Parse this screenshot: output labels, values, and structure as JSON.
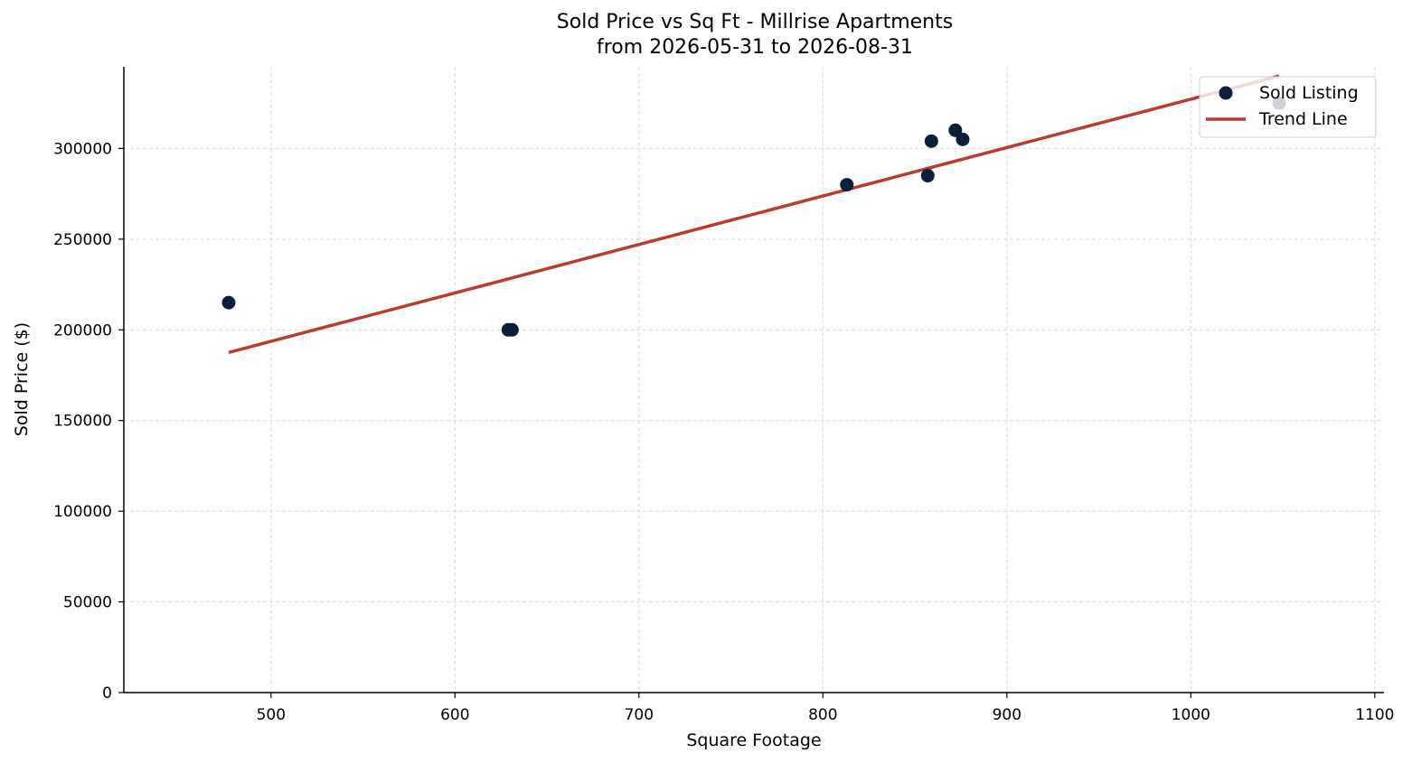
{
  "chart_data": {
    "type": "scatter",
    "title": "Sold Price vs Sq Ft - Millrise Apartments",
    "subtitle": "from 2026-05-31 to 2026-08-31",
    "xlabel": "Square Footage",
    "ylabel": "Sold Price ($)",
    "xlim": [
      420,
      1105
    ],
    "ylim": [
      0,
      345000
    ],
    "xticks": [
      500,
      600,
      700,
      800,
      900,
      1000,
      1100
    ],
    "yticks": [
      0,
      50000,
      100000,
      150000,
      200000,
      250000,
      300000
    ],
    "grid": true,
    "legend_position": "top-right",
    "series": [
      {
        "name": "Sold Listing",
        "kind": "scatter",
        "color": "#0b1e3a",
        "points": [
          {
            "x": 477,
            "y": 215000
          },
          {
            "x": 629,
            "y": 200000
          },
          {
            "x": 631,
            "y": 200000
          },
          {
            "x": 813,
            "y": 280000
          },
          {
            "x": 857,
            "y": 285000
          },
          {
            "x": 859,
            "y": 304000
          },
          {
            "x": 872,
            "y": 310000
          },
          {
            "x": 876,
            "y": 305000
          },
          {
            "x": 1048,
            "y": 325000
          }
        ]
      },
      {
        "name": "Trend Line",
        "kind": "line",
        "color": "#b83c30",
        "points": [
          {
            "x": 477,
            "y": 187500
          },
          {
            "x": 1048,
            "y": 340000
          }
        ]
      }
    ]
  }
}
